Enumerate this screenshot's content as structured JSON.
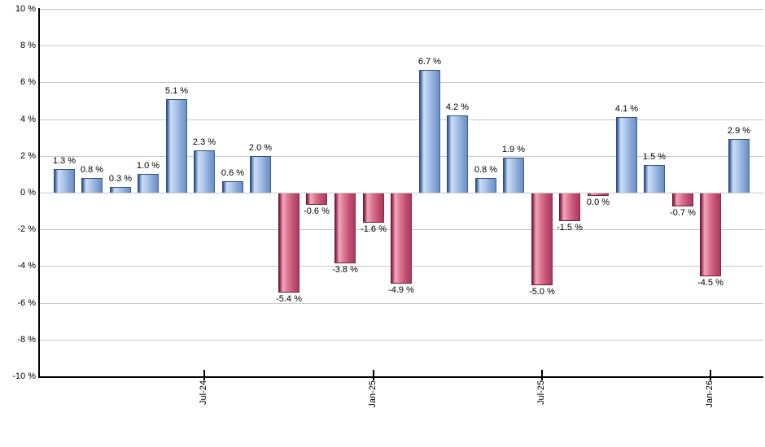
{
  "chart_data": {
    "type": "bar",
    "title": "",
    "xlabel": "",
    "ylabel": "",
    "ylim": [
      -10,
      10
    ],
    "grid": true,
    "legend_position": "none",
    "y_ticks": [
      {
        "value": 10,
        "label": "10 %"
      },
      {
        "value": 8,
        "label": "8 %"
      },
      {
        "value": 6,
        "label": "6 %"
      },
      {
        "value": 4,
        "label": "4 %"
      },
      {
        "value": 2,
        "label": "2 %"
      },
      {
        "value": 0,
        "label": "0 %"
      },
      {
        "value": -2,
        "label": "-2 %"
      },
      {
        "value": -4,
        "label": "-4 %"
      },
      {
        "value": -6,
        "label": "-6 %"
      },
      {
        "value": -8,
        "label": "-8 %"
      },
      {
        "value": -10,
        "label": "-10 %"
      }
    ],
    "values": [
      1.3,
      0.8,
      0.3,
      1.0,
      5.1,
      2.3,
      0.6,
      2.0,
      -5.4,
      -0.6,
      -3.8,
      -1.6,
      -4.9,
      6.7,
      4.2,
      0.8,
      1.9,
      -5.0,
      -1.5,
      0.0,
      4.1,
      1.5,
      -0.7,
      -4.5,
      2.9
    ],
    "value_labels": [
      "1.3 %",
      "0.8 %",
      "0.3 %",
      "1.0 %",
      "5.1 %",
      "2.3 %",
      "0.6 %",
      "2.0 %",
      "-5.4 %",
      "-0.6 %",
      "-3.8 %",
      "-1.6 %",
      "-4.9 %",
      "6.7 %",
      "4.2 %",
      "0.8 %",
      "1.9 %",
      "-5.0 %",
      "-1.5 %",
      "0.0 %",
      "4.1 %",
      "1.5 %",
      "-0.7 %",
      "-4.5 %",
      "2.9 %"
    ],
    "bar_colors": [
      "blue",
      "blue",
      "blue",
      "blue",
      "blue",
      "blue",
      "blue",
      "blue",
      "red",
      "red",
      "red",
      "red",
      "red",
      "blue",
      "blue",
      "blue",
      "blue",
      "red",
      "red",
      "red",
      "blue",
      "blue",
      "red",
      "red",
      "blue"
    ],
    "x_ticks": [
      {
        "label": "Jul-24",
        "bar_index": 5
      },
      {
        "label": "Jan-25",
        "bar_index": 11
      },
      {
        "label": "Jul-25",
        "bar_index": 17
      },
      {
        "label": "Jan-26",
        "bar_index": 23
      }
    ],
    "colors": {
      "positive_bar_edge": "#2f4f82",
      "positive_bar_highlight": "#ccddf6",
      "positive_bar_mid": "#6b8ec1",
      "negative_bar_edge": "#701c38",
      "negative_bar_highlight": "#f2a8bc",
      "negative_bar_mid": "#a93a5b",
      "gridline": "#c9c9c9",
      "axis": "#000000",
      "label_text": "#000000",
      "background": "#ffffff"
    }
  }
}
